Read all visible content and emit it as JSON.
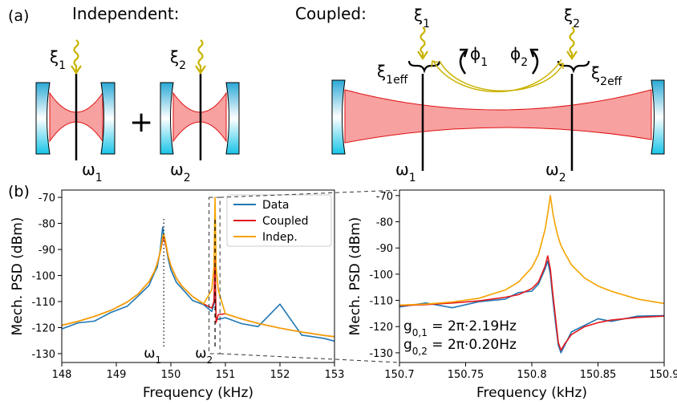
{
  "diagram": {
    "panel_label": "(a)",
    "independent_title": "Independent:",
    "coupled_title": "Coupled:",
    "plus": "+",
    "labels": [
      {
        "base": "ξ",
        "sub": "1"
      },
      {
        "base": "ω",
        "sub": "1"
      },
      {
        "base": "ξ",
        "sub": "2"
      },
      {
        "base": "ω",
        "sub": "2"
      },
      {
        "base": "ξ",
        "sub": "1"
      },
      {
        "base": "ξ",
        "sub": "1eff"
      },
      {
        "base": "ϕ",
        "sub": "1"
      },
      {
        "base": "ϕ",
        "sub": "2"
      },
      {
        "base": "ξ",
        "sub": "2"
      },
      {
        "base": "ξ",
        "sub": "2eff"
      },
      {
        "base": "ω",
        "sub": "1"
      },
      {
        "base": "ω",
        "sub": "2"
      }
    ]
  },
  "chart_data": [
    {
      "type": "line",
      "panel_label": "(b)",
      "xlabel": "Frequency (kHz)",
      "ylabel": "Mech. PSD (dBm)",
      "x": [
        148,
        148.3,
        148.6,
        148.9,
        149.2,
        149.4,
        149.6,
        149.7,
        149.75,
        149.8,
        149.85,
        149.87,
        149.9,
        149.95,
        150,
        150.1,
        150.2,
        150.4,
        150.6,
        150.75,
        150.79,
        150.81,
        150.83,
        150.87,
        151,
        151.3,
        151.6,
        152,
        152.4,
        152.8,
        153
      ],
      "series": [
        {
          "name": "Data",
          "color": "#1f77b4",
          "values": [
            -120.5,
            -118.2,
            -117.5,
            -114.2,
            -111.8,
            -107.9,
            -103.8,
            -98.9,
            -96.8,
            -91,
            -81.5,
            -84.5,
            -87.2,
            -93.5,
            -97.8,
            -102.6,
            -104.9,
            -109.6,
            -111.2,
            -113.8,
            -111,
            -104,
            -117,
            -116.8,
            -116.2,
            -118.5,
            -119.6,
            -111,
            -122.9,
            -124.1,
            -125.2
          ]
        },
        {
          "name": "Coupled",
          "color": "#e3191c",
          "values": [
            -119.1,
            -117.6,
            -115.7,
            -113.4,
            -110.2,
            -107.1,
            -102.4,
            -98.4,
            -95.5,
            -91.4,
            -86.4,
            -85,
            -87.6,
            -92.4,
            -96.2,
            -101,
            -104,
            -108.1,
            -110.9,
            -112.5,
            -110,
            -93,
            -118,
            -115,
            -114.7,
            -116.7,
            -118.4,
            -120.2,
            -121.7,
            -123,
            -123.5
          ]
        },
        {
          "name": "Indep.",
          "color": "#f5a300",
          "values": [
            -119.1,
            -117.6,
            -115.7,
            -113.4,
            -110.2,
            -107.1,
            -102.4,
            -98.4,
            -95.5,
            -91.4,
            -85.4,
            -84,
            -86.6,
            -92.4,
            -96.2,
            -101,
            -104,
            -108.1,
            -110.9,
            -105.5,
            -96.8,
            -70,
            -96.8,
            -105.7,
            -114.7,
            -116.7,
            -118.4,
            -120.2,
            -121.7,
            -123,
            -123.5
          ]
        }
      ],
      "xlim": [
        148,
        153
      ],
      "ylim": [
        -133.4,
        -67.2
      ],
      "xticks": [
        148,
        149,
        150,
        151,
        152,
        153
      ],
      "yticks": [
        -70,
        -80,
        -90,
        -100,
        -110,
        -120,
        -130
      ],
      "legend": "upper right",
      "markers": [
        {
          "x": 149.87,
          "symbol": "ω",
          "sub": "1",
          "linestyle": "dotted"
        },
        {
          "x": 150.81,
          "symbol": "ω",
          "sub": "2",
          "linestyle": "dashed"
        }
      ]
    },
    {
      "type": "line",
      "xlabel": "Frequency (kHz)",
      "ylabel": "Mech. PSD (dBm)",
      "x": [
        150.7,
        150.72,
        150.74,
        150.76,
        150.78,
        150.79,
        150.8,
        150.805,
        150.81,
        150.812,
        150.814,
        150.816,
        150.818,
        150.82,
        150.822,
        150.825,
        150.83,
        150.84,
        150.85,
        150.86,
        150.88,
        150.9
      ],
      "series": [
        {
          "color": "#1f77b4",
          "values": [
            -112.5,
            -111,
            -112.8,
            -110.5,
            -109.5,
            -107,
            -106.5,
            -103.8,
            -98,
            -95,
            -100,
            -110,
            -119,
            -127,
            -130,
            -127,
            -122,
            -119.5,
            -117,
            -118,
            -116,
            -115.8
          ]
        },
        {
          "color": "#e3191c",
          "values": [
            -112,
            -111.6,
            -111,
            -110.2,
            -108.8,
            -107.8,
            -105.5,
            -103,
            -97,
            -93,
            -98,
            -108,
            -117,
            -126,
            -129,
            -126.5,
            -123,
            -120,
            -118.5,
            -117.5,
            -116.5,
            -116
          ]
        },
        {
          "color": "#f5a300",
          "values": [
            -111.8,
            -111.4,
            -110.6,
            -109.2,
            -106,
            -103,
            -97.5,
            -92.5,
            -83,
            -77,
            -70,
            -77,
            -82,
            -86,
            -89,
            -92,
            -96.5,
            -101.5,
            -104.5,
            -106.5,
            -109.5,
            -111.2
          ]
        }
      ],
      "xlim": [
        150.7,
        150.9
      ],
      "ylim": [
        -133.7,
        -67.9
      ],
      "xticks": [
        150.7,
        150.75,
        150.8,
        150.85,
        150.9
      ],
      "yticks": [
        -70,
        -80,
        -90,
        -100,
        -110,
        -120,
        -130
      ],
      "annotations": [
        {
          "base": "g",
          "sub": "0,1",
          "text": " = 2π·2.19Hz"
        },
        {
          "base": "g",
          "sub": "0,2",
          "text": " = 2π·0.20Hz"
        }
      ]
    }
  ]
}
